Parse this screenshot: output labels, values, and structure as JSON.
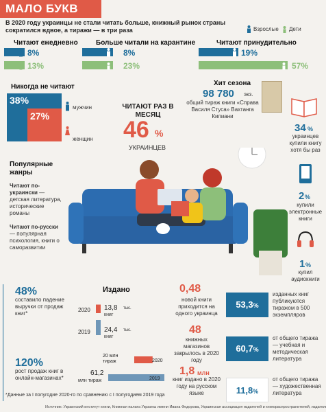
{
  "header": {
    "title": "МАЛО БУКВ",
    "subtitle": "В 2020 году украинцы не стали читать больше, книжный рынок страны сократился вдвое, а тиражи — в три раза",
    "legend_adults": "Взрослые",
    "legend_kids": "Дети"
  },
  "reading": {
    "daily_title": "Читают ежедневно",
    "daily_adults": "8%",
    "daily_kids": "13%",
    "quarantine_title": "Больше читали на карантине",
    "quarantine_adults": "8%",
    "quarantine_kids": "23%",
    "forced_title": "Читают принудительно",
    "forced_adults": "19%",
    "forced_kids": "57%"
  },
  "never": {
    "title": "Никогда не читают",
    "men_pct": "38%",
    "women_pct": "27%",
    "men_label": "мужчин",
    "women_label": "женщин"
  },
  "monthly": {
    "label": "ЧИТАЮТ РАЗ В МЕСЯЦ",
    "value": "46",
    "unit": "%",
    "caption": "УКРАИНЦЕВ"
  },
  "hit": {
    "title": "Хит сезона",
    "number": "98 780",
    "unit": "экз.",
    "desc": "общий тираж книги «Справа Василя Стуса» Вахтанга Кипиани"
  },
  "right_col": {
    "paper_pct": "34",
    "paper_text": "украинцев купили книгу хотя бы раз",
    "ebook_pct": "2",
    "ebook_text": "купили электронные книги",
    "audio_pct": "1",
    "audio_text": "купил аудиокниги"
  },
  "genres": {
    "title": "Популярные жанры",
    "ukr_lead": "Читают по-украински",
    "ukr_rest": "— детская литература, исторические романы",
    "rus_lead": "Читают по-русски",
    "rus_rest": "— популярная психология, книги о саморазвитии"
  },
  "bottom_left": {
    "drop_pct": "48%",
    "drop_text": "составило падение выручки от продаж книг*",
    "growth_pct": "120%",
    "growth_text": "рост продаж книг в онлайн-магазинах*",
    "footnote": "*Данные за I полугодие 2020-го по сравнению с I полугодием 2019 года"
  },
  "chart_data": {
    "title": "Издано",
    "type": "bar",
    "categories": [
      "2020",
      "2019"
    ],
    "series": [
      {
        "name": "книг",
        "values": [
          13.8,
          24.4
        ],
        "unit": "тыс."
      },
      {
        "name": "тираж",
        "values": [
          20,
          61.2
        ],
        "unit": "млн"
      }
    ],
    "labels": {
      "books_2020": "13,8",
      "books_2019": "24,4",
      "books_unit": "тыс.",
      "books_suffix": "книг",
      "run_2020": "20 млн",
      "run_2019": "61,2",
      "run_unit": "млн тираж",
      "run_suffix_2020": "тираж",
      "year_2020": "2020",
      "year_2019": "2019"
    },
    "colors": {
      "y2020": "#e05a47",
      "y2019": "#6f97b8"
    }
  },
  "middle_stats": {
    "s1_value": "0,48",
    "s1_text": "новой книги приходится на одного украинца",
    "s2_value": "48",
    "s2_text": "книжных магазинов закрылось в 2020 году",
    "s3_value": "1,8",
    "s3_unit": "млн",
    "s3_text": "книг издано в 2020 году на русском языке"
  },
  "right_stats": {
    "r1_value": "53,3",
    "r1_unit": "%",
    "r1_text": "изданных книг публикуются тиражом в 500 экземпляров",
    "r2_value": "60,7",
    "r2_unit": "%",
    "r2_text": "от общего тиража — учебная и методическая литература",
    "r3_value": "11,8",
    "r3_unit": "%",
    "r3_text": "от общего тиража — художественная литература"
  },
  "source": "Источник: Украинский институт книги, Книжная палата Украины имени Ивана Федорова, Украинская ассоциация издателей и книгораспространителей, издательство Vivat",
  "colors": {
    "red": "#e05a47",
    "blue": "#1f6e9b",
    "green": "#8dbf7a",
    "bg": "#f4f2ee"
  }
}
